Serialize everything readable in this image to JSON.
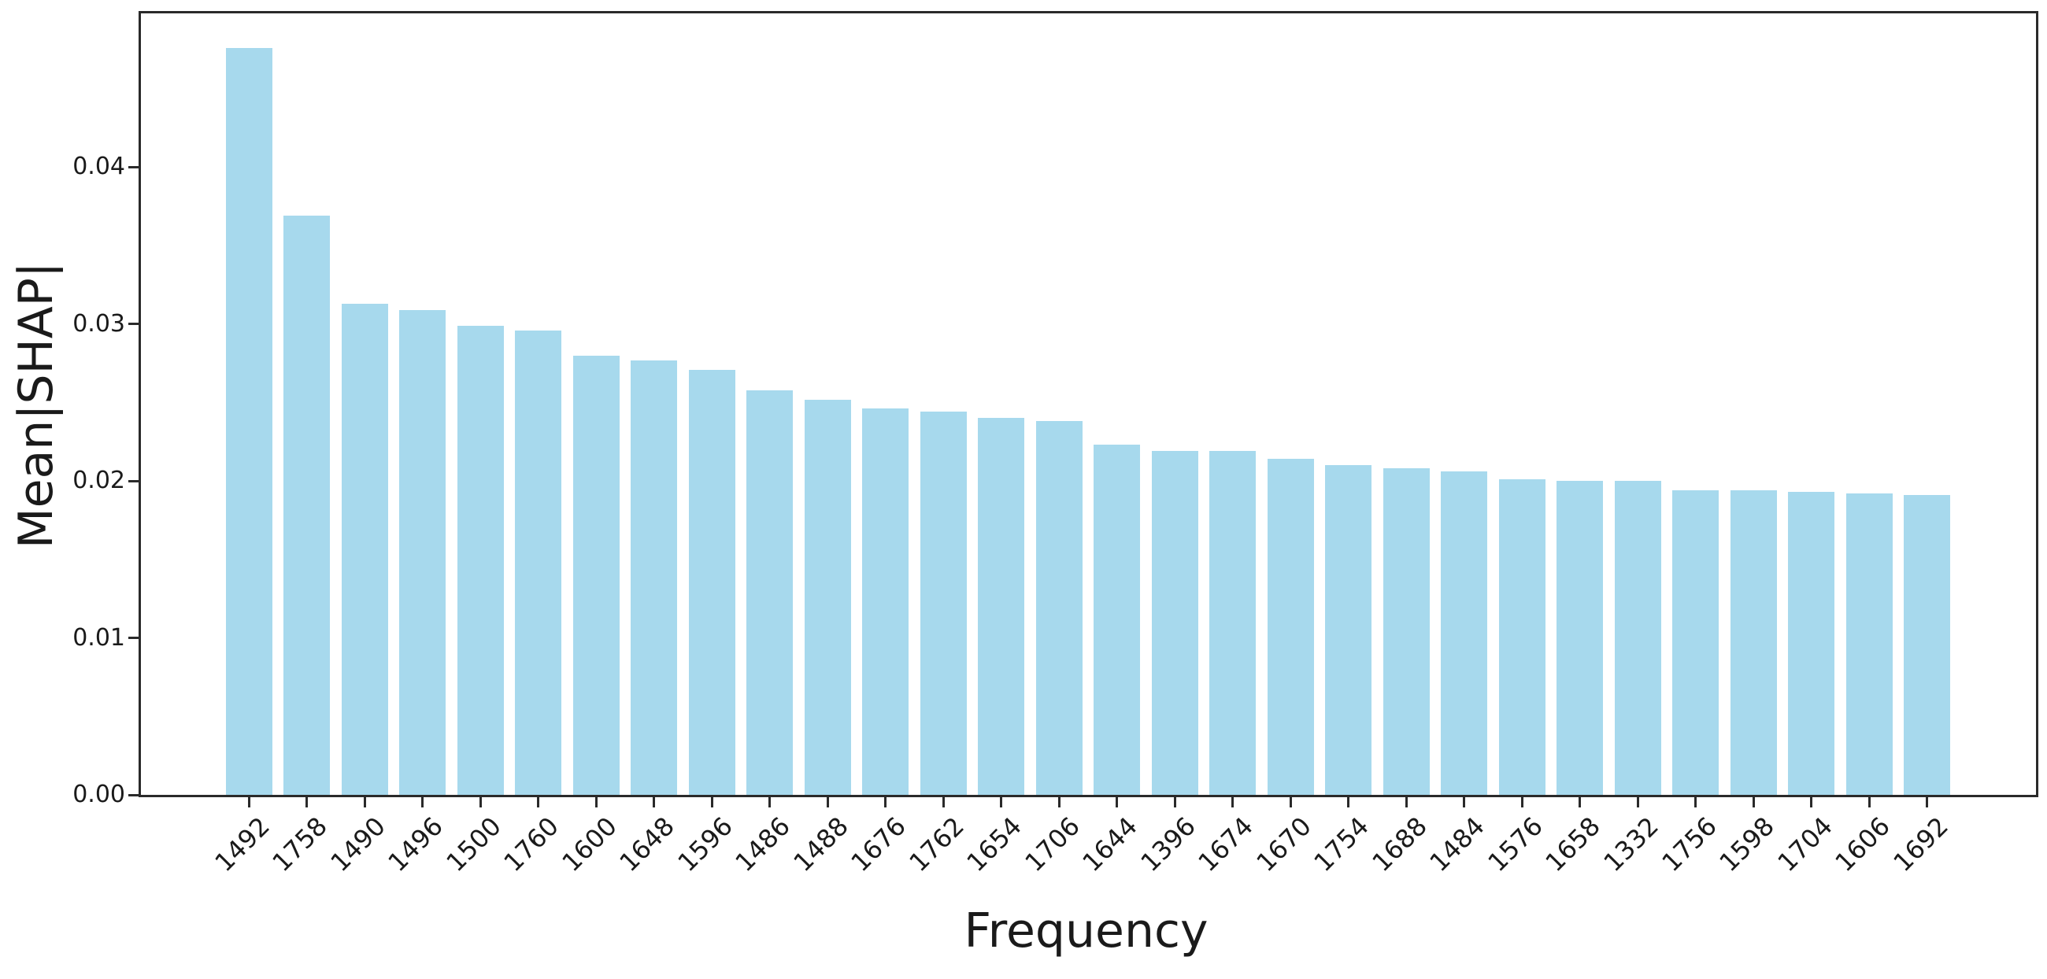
{
  "chart_data": {
    "type": "bar",
    "title": "",
    "xlabel": "Frequency",
    "ylabel": "Mean|SHAP|",
    "categories": [
      "1492",
      "1758",
      "1490",
      "1496",
      "1500",
      "1760",
      "1600",
      "1648",
      "1596",
      "1486",
      "1488",
      "1676",
      "1762",
      "1654",
      "1706",
      "1644",
      "1396",
      "1674",
      "1670",
      "1754",
      "1688",
      "1484",
      "1576",
      "1658",
      "1332",
      "1756",
      "1598",
      "1704",
      "1606",
      "1692"
    ],
    "values": [
      0.0476,
      0.0369,
      0.0313,
      0.0309,
      0.0299,
      0.0296,
      0.028,
      0.0277,
      0.0271,
      0.0258,
      0.0252,
      0.0246,
      0.0244,
      0.024,
      0.0238,
      0.0223,
      0.0219,
      0.0219,
      0.0214,
      0.021,
      0.0208,
      0.0206,
      0.0201,
      0.02,
      0.02,
      0.0194,
      0.0194,
      0.0193,
      0.0192,
      0.0191
    ],
    "ylim": [
      0,
      0.0498
    ],
    "yticks": [
      0,
      0.01,
      0.02,
      0.03,
      0.04
    ],
    "ytick_labels": [
      "0.00",
      "0.01",
      "0.02",
      "0.03",
      "0.04"
    ],
    "xtick_rotation_deg": 45,
    "grid": false,
    "legend": null
  },
  "colors": {
    "bar": "#a7d9ed",
    "axis": "#2a2a2a",
    "text": "#1a1a1a",
    "background": "#ffffff"
  }
}
